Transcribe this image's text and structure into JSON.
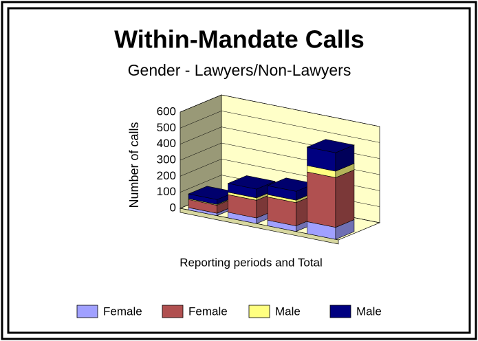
{
  "chart_data": {
    "type": "bar3d_stacked",
    "title": "Within-Mandate Calls",
    "subtitle": "Gender - Lawyers/Non-Lawyers",
    "ylabel": "Number of calls",
    "xlabel": "Reporting periods and Total",
    "categories": [
      null,
      null,
      null,
      null
    ],
    "series": [
      {
        "name": "Female",
        "color": "#a0a0ff",
        "values": [
          15,
          35,
          35,
          75
        ]
      },
      {
        "name": "Female",
        "color": "#b05050",
        "values": [
          50,
          110,
          145,
          310
        ]
      },
      {
        "name": "Male",
        "color": "#ffff80",
        "values": [
          5,
          15,
          15,
          40
        ]
      },
      {
        "name": "Male",
        "color": "#000080",
        "values": [
          30,
          55,
          55,
          115
        ]
      }
    ],
    "ylim": [
      0,
      600
    ],
    "yticks": [
      0,
      100,
      200,
      300,
      400,
      500,
      600
    ],
    "grid": true,
    "legend": "bottom"
  }
}
